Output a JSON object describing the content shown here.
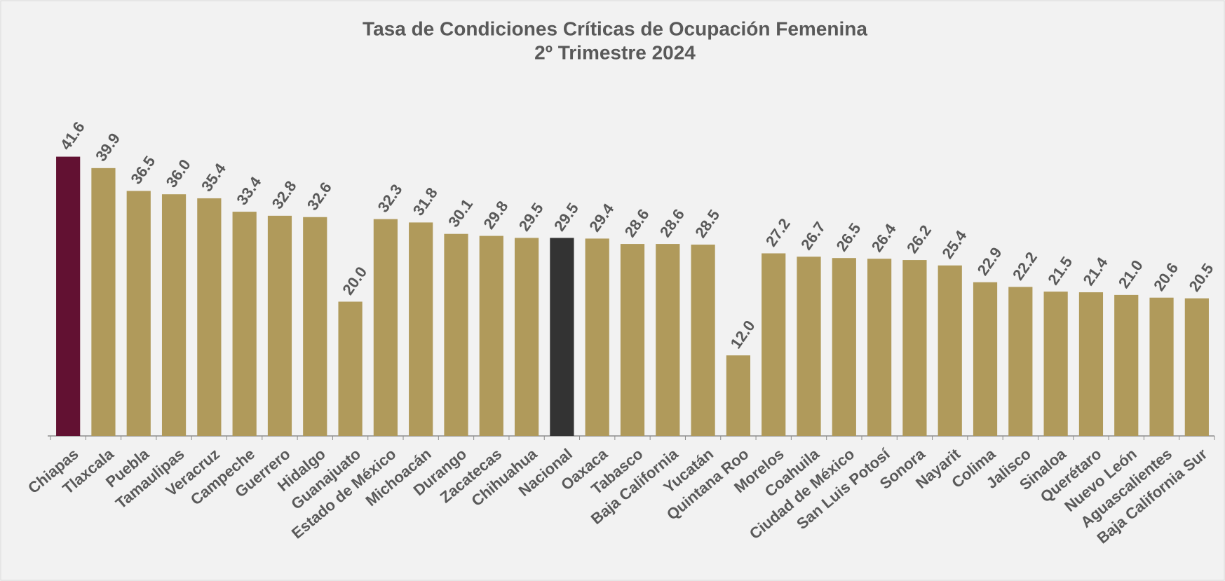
{
  "chart_data": {
    "type": "bar",
    "title": "Tasa de Condiciones Críticas de Ocupación Femenina",
    "subtitle": "2º Trimestre 2024",
    "categories": [
      "Chiapas",
      "Tlaxcala",
      "Puebla",
      "Tamaulipas",
      "Veracruz",
      "Campeche",
      "Guerrero",
      "Hidalgo",
      "Guanajuato",
      "Estado de México",
      "Michoacán",
      "Durango",
      "Zacatecas",
      "Chihuahua",
      "Nacional",
      "Oaxaca",
      "Tabasco",
      "Baja California",
      "Yucatán",
      "Quintana Roo",
      "Morelos",
      "Coahuila",
      "Ciudad de México",
      "San Luis Potosí",
      "Sonora",
      "Nayarit",
      "Colima",
      "Jalisco",
      "Sinaloa",
      "Querétaro",
      "Nuevo León",
      "Aguascalientes",
      "Baja California Sur"
    ],
    "values": [
      41.6,
      39.9,
      36.5,
      36.0,
      35.4,
      33.4,
      32.8,
      32.6,
      20.0,
      32.3,
      31.8,
      30.1,
      29.8,
      29.5,
      29.5,
      29.4,
      28.6,
      28.6,
      28.5,
      12.0,
      27.2,
      26.7,
      26.5,
      26.4,
      26.2,
      25.4,
      22.9,
      22.2,
      21.5,
      21.4,
      21.0,
      20.6,
      20.5
    ],
    "value_labels": [
      "41.6",
      "39.9",
      "36.5",
      "36.0",
      "35.4",
      "33.4",
      "32.8",
      "32.6",
      "20.0",
      "32.3",
      "31.8",
      "30.1",
      "29.8",
      "29.5",
      "29.5",
      "29.4",
      "28.6",
      "28.6",
      "28.5",
      "12.0",
      "27.2",
      "26.7",
      "26.5",
      "26.4",
      "26.2",
      "25.4",
      "22.9",
      "22.2",
      "21.5",
      "21.4",
      "21.0",
      "20.6",
      "20.5"
    ],
    "colors": [
      "#621132",
      "#b09a5b",
      "#b09a5b",
      "#b09a5b",
      "#b09a5b",
      "#b09a5b",
      "#b09a5b",
      "#b09a5b",
      "#b09a5b",
      "#b09a5b",
      "#b09a5b",
      "#b09a5b",
      "#b09a5b",
      "#b09a5b",
      "#333333",
      "#b09a5b",
      "#b09a5b",
      "#b09a5b",
      "#b09a5b",
      "#b09a5b",
      "#b09a5b",
      "#b09a5b",
      "#b09a5b",
      "#b09a5b",
      "#b09a5b",
      "#b09a5b",
      "#b09a5b",
      "#b09a5b",
      "#b09a5b",
      "#b09a5b",
      "#b09a5b",
      "#b09a5b",
      "#b09a5b"
    ],
    "ylim": [
      0,
      45
    ]
  }
}
